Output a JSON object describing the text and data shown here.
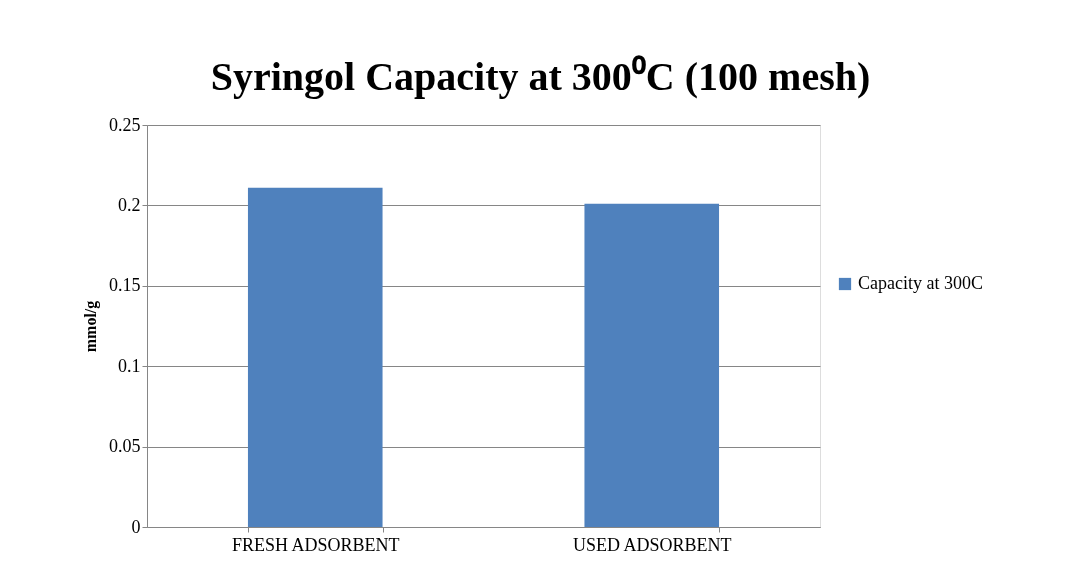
{
  "chart_data": {
    "type": "bar",
    "title": "Syringol Capacity at 300⁰C (100 mesh)",
    "ylabel": "mmol/g",
    "categories": [
      "FRESH ADSORBENT",
      "USED ADSORBENT"
    ],
    "series": [
      {
        "name": "Capacity at 300C",
        "color": "#4f81bd",
        "values": [
          0.211,
          0.201
        ]
      }
    ],
    "ylim": [
      0,
      0.25
    ],
    "yticks": [
      0,
      0.05,
      0.1,
      0.15,
      0.2,
      0.25
    ],
    "grid": "y",
    "legend": "right"
  }
}
